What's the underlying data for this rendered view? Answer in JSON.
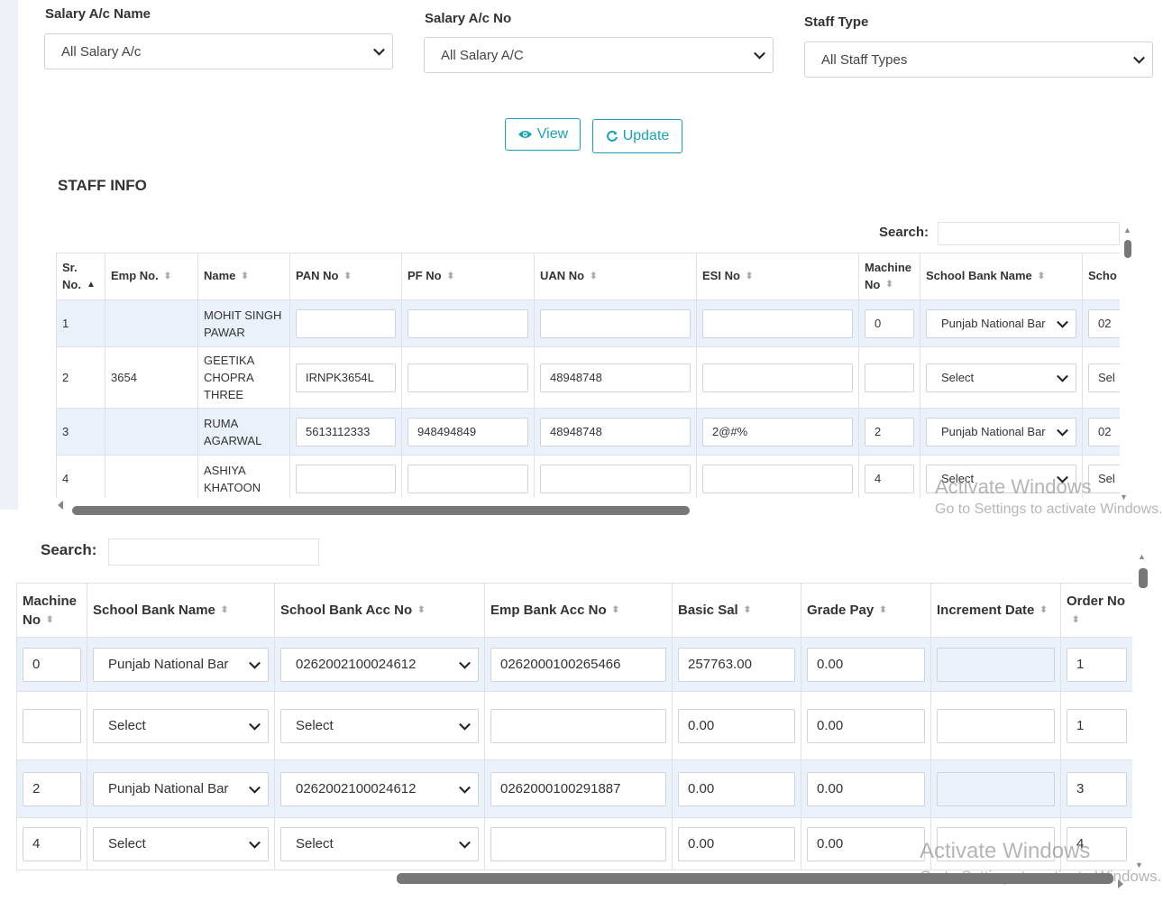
{
  "filters": {
    "salary_ac_name": {
      "label": "Salary A/c Name",
      "value": "All Salary A/c"
    },
    "salary_ac_no": {
      "label": "Salary A/c No",
      "value": "All Salary A/C"
    },
    "staff_type": {
      "label": "Staff Type",
      "value": "All Staff Types"
    }
  },
  "buttons": {
    "view": "View",
    "update": "Update"
  },
  "accent_color": "#17a2b8",
  "section_title": "STAFF INFO",
  "search_label": "Search:",
  "table1": {
    "headers": [
      "Sr. No.",
      "Emp No.",
      "Name",
      "PAN No",
      "PF No",
      "UAN No",
      "ESI No",
      "Machine No",
      "School Bank Name",
      "Scho"
    ],
    "rows": [
      {
        "sr": "1",
        "emp": "",
        "name": "MOHIT SINGH PAWAR",
        "pan": "",
        "pf": "",
        "uan": "",
        "esi": "",
        "machine": "0",
        "bank": "Punjab National Bar",
        "school": "02"
      },
      {
        "sr": "2",
        "emp": "3654",
        "name": "GEETIKA CHOPRA THREE",
        "pan": "IRNPK3654L",
        "pf": "",
        "uan": "48948748",
        "esi": "",
        "machine": "",
        "bank": "Select",
        "school": "Sel"
      },
      {
        "sr": "3",
        "emp": "",
        "name": "RUMA AGARWAL",
        "pan": "5613112333",
        "pf": "948494849",
        "uan": "48948748",
        "esi": "2@#%",
        "machine": "2",
        "bank": "Punjab National Bar",
        "school": "02"
      },
      {
        "sr": "4",
        "emp": "",
        "name": "ASHIYA KHATOON",
        "pan": "",
        "pf": "",
        "uan": "",
        "esi": "",
        "machine": "4",
        "bank": "Select",
        "school": "Sel"
      }
    ]
  },
  "table2": {
    "headers": [
      "Machine No",
      "School Bank Name",
      "School Bank Acc No",
      "Emp Bank Acc No",
      "Basic Sal",
      "Grade Pay",
      "Increment Date",
      "Order No"
    ],
    "rows": [
      {
        "machine": "0",
        "bank": "Punjab National Bar",
        "school_acc": "0262002100024612",
        "emp_acc": "0262000100265466",
        "basic": "257763.00",
        "grade": "0.00",
        "increment": "",
        "order": "1"
      },
      {
        "machine": "",
        "bank": "Select",
        "school_acc": "Select",
        "emp_acc": "",
        "basic": "0.00",
        "grade": "0.00",
        "increment": "",
        "order": "1"
      },
      {
        "machine": "2",
        "bank": "Punjab National Bar",
        "school_acc": "0262002100024612",
        "emp_acc": "0262000100291887",
        "basic": "0.00",
        "grade": "0.00",
        "increment": "",
        "order": "3"
      },
      {
        "machine": "4",
        "bank": "Select",
        "school_acc": "Select",
        "emp_acc": "",
        "basic": "0.00",
        "grade": "0.00",
        "increment": "",
        "order": "4"
      }
    ]
  },
  "watermark": {
    "title": "Activate Windows",
    "subtitle": "Go to Settings to activate Windows."
  }
}
